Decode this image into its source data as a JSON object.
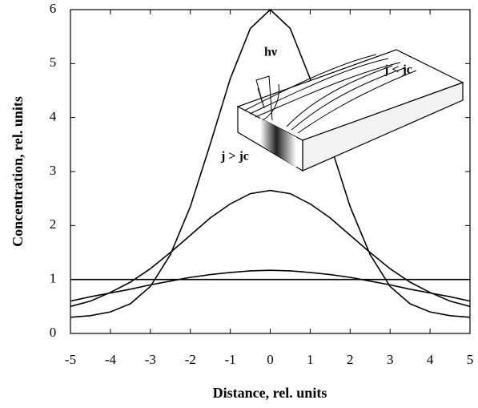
{
  "chart_data": {
    "type": "line",
    "x_label": "Distance, rel. units",
    "y_label": "Concentration, rel. units",
    "x": [
      -5,
      -4.5,
      -4,
      -3.5,
      -3,
      -2.5,
      -2,
      -1.5,
      -1,
      -0.5,
      0,
      0.5,
      1,
      1.5,
      2,
      2.5,
      3,
      3.5,
      4,
      4.5,
      5
    ],
    "series": [
      {
        "color": "#000000",
        "values": [
          0.3,
          0.33,
          0.4,
          0.55,
          0.87,
          1.46,
          2.35,
          3.51,
          4.72,
          5.65,
          6.0,
          5.65,
          4.72,
          3.51,
          2.35,
          1.46,
          0.87,
          0.55,
          0.4,
          0.33,
          0.3
        ]
      },
      {
        "color": "#000000",
        "values": [
          0.5,
          0.6,
          0.76,
          0.95,
          1.2,
          1.5,
          1.82,
          2.14,
          2.4,
          2.59,
          2.65,
          2.59,
          2.4,
          2.14,
          1.82,
          1.5,
          1.2,
          0.95,
          0.76,
          0.6,
          0.5
        ]
      },
      {
        "color": "#000000",
        "values": [
          0.6,
          0.68,
          0.75,
          0.82,
          0.9,
          0.97,
          1.04,
          1.09,
          1.13,
          1.16,
          1.17,
          1.16,
          1.13,
          1.09,
          1.04,
          0.97,
          0.9,
          0.82,
          0.75,
          0.68,
          0.6
        ]
      },
      {
        "color": "#000000",
        "values": [
          1,
          1,
          1,
          1,
          1,
          1,
          1,
          1,
          1,
          1,
          1,
          1,
          1,
          1,
          1,
          1,
          1,
          1,
          1,
          1,
          1
        ]
      }
    ],
    "xlim": [
      -5,
      5
    ],
    "xticks": [
      -5,
      -4,
      -3,
      -2,
      -1,
      0,
      1,
      2,
      3,
      4,
      5
    ],
    "ylim": [
      0,
      6
    ],
    "yticks": [
      0,
      1,
      2,
      3,
      4,
      5,
      6
    ],
    "grid": false,
    "inset_labels": [
      "hν",
      "j < jc",
      "j > jc"
    ]
  }
}
